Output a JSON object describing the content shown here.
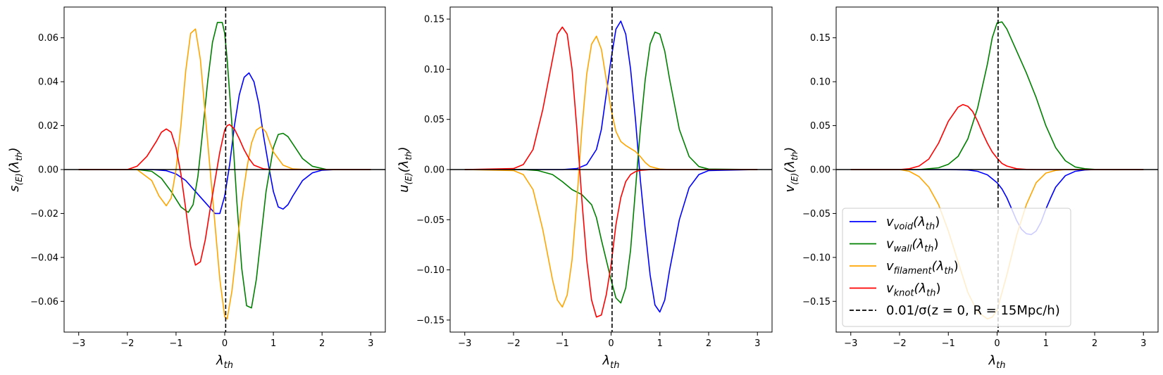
{
  "colors": {
    "void": "#0000ff",
    "wall": "#008000",
    "filament": "#ffa500",
    "knot": "#ff0000",
    "threshold": "#000000"
  },
  "chart_data": [
    {
      "type": "line",
      "xlabel": "λ_th",
      "ylabel": "s_{E}(λ_th)",
      "xlim": [
        -3.3,
        3.3
      ],
      "ylim": [
        -0.074,
        0.074
      ],
      "xticks": [
        -3,
        -2,
        -1,
        0,
        1,
        2,
        3
      ],
      "xtick_labels": [
        "−3",
        "−2",
        "−1",
        "0",
        "1",
        "2",
        "3"
      ],
      "yticks": [
        -0.06,
        -0.04,
        -0.02,
        0.0,
        0.02,
        0.04,
        0.06
      ],
      "ytick_labels": [
        "−0.06",
        "−0.04",
        "−0.02",
        "0.00",
        "0.02",
        "0.04",
        "0.06"
      ],
      "vline_x": 0.02,
      "hline_y": 0,
      "series": [
        {
          "key": "void",
          "x": [
            -3,
            -1.5,
            -1.2,
            -1,
            -0.8,
            -0.6,
            -0.4,
            -0.2,
            -0.1,
            0,
            0.1,
            0.2,
            0.3,
            0.4,
            0.5,
            0.6,
            0.7,
            0.8,
            0.9,
            1,
            1.1,
            1.2,
            1.3,
            1.4,
            1.6,
            1.8,
            2,
            2.3,
            3
          ],
          "y": [
            0,
            0,
            -0.0005,
            -0.002,
            -0.005,
            -0.01,
            -0.015,
            -0.02,
            -0.02,
            -0.012,
            0.002,
            0.02,
            0.034,
            0.042,
            0.044,
            0.04,
            0.03,
            0.015,
            0.002,
            -0.01,
            -0.017,
            -0.018,
            -0.016,
            -0.012,
            -0.005,
            -0.0015,
            -0.0003,
            0,
            0
          ]
        },
        {
          "key": "wall",
          "x": [
            -3,
            -1.8,
            -1.5,
            -1.3,
            -1.1,
            -0.9,
            -0.75,
            -0.65,
            -0.55,
            -0.45,
            -0.35,
            -0.25,
            -0.15,
            -0.05,
            0,
            0.05,
            0.15,
            0.25,
            0.35,
            0.45,
            0.55,
            0.65,
            0.75,
            0.85,
            1,
            1.1,
            1.2,
            1.3,
            1.45,
            1.6,
            1.8,
            2.1,
            3
          ],
          "y": [
            0,
            0,
            -0.0008,
            -0.004,
            -0.01,
            -0.017,
            -0.0195,
            -0.016,
            -0.003,
            0.018,
            0.04,
            0.058,
            0.067,
            0.067,
            0.062,
            0.05,
            0.02,
            -0.015,
            -0.045,
            -0.062,
            -0.063,
            -0.05,
            -0.03,
            -0.01,
            0.01,
            0.016,
            0.0165,
            0.015,
            0.01,
            0.005,
            0.0015,
            0,
            0
          ]
        },
        {
          "key": "filament",
          "x": [
            -3,
            -1.8,
            -1.5,
            -1.35,
            -1.2,
            -1.1,
            -1,
            -0.9,
            -0.8,
            -0.7,
            -0.6,
            -0.5,
            -0.4,
            -0.3,
            -0.2,
            -0.1,
            0,
            0.05,
            0.15,
            0.25,
            0.35,
            0.45,
            0.55,
            0.65,
            0.75,
            0.85,
            1,
            1.2,
            1.4,
            1.7,
            3
          ],
          "y": [
            0,
            0,
            -0.005,
            -0.012,
            -0.0165,
            -0.013,
            0.0,
            0.02,
            0.045,
            0.062,
            0.064,
            0.05,
            0.025,
            0.0,
            -0.025,
            -0.05,
            -0.067,
            -0.068,
            -0.055,
            -0.035,
            -0.015,
            0.0,
            0.012,
            0.018,
            0.0195,
            0.017,
            0.008,
            0.002,
            0.0003,
            0,
            0
          ]
        },
        {
          "key": "knot",
          "x": [
            -3,
            -2,
            -1.8,
            -1.6,
            -1.4,
            -1.3,
            -1.2,
            -1.1,
            -1,
            -0.9,
            -0.8,
            -0.7,
            -0.6,
            -0.5,
            -0.4,
            -0.3,
            -0.2,
            -0.1,
            0,
            0.05,
            0.1,
            0.2,
            0.3,
            0.4,
            0.5,
            0.6,
            0.8,
            1,
            3
          ],
          "y": [
            0,
            0,
            0.0015,
            0.006,
            0.013,
            0.017,
            0.0185,
            0.017,
            0.01,
            -0.002,
            -0.018,
            -0.035,
            -0.0435,
            -0.042,
            -0.032,
            -0.018,
            -0.005,
            0.008,
            0.018,
            0.02,
            0.0205,
            0.0185,
            0.014,
            0.009,
            0.005,
            0.002,
            0.0003,
            0,
            0
          ]
        }
      ]
    },
    {
      "type": "line",
      "xlabel": "λ_th",
      "ylabel": "u_{E}(λ_th)",
      "xlim": [
        -3.3,
        3.3
      ],
      "ylim": [
        -0.162,
        0.162
      ],
      "xticks": [
        -3,
        -2,
        -1,
        0,
        1,
        2,
        3
      ],
      "xtick_labels": [
        "−3",
        "−2",
        "−1",
        "0",
        "1",
        "2",
        "3"
      ],
      "yticks": [
        -0.15,
        -0.1,
        -0.05,
        0.0,
        0.05,
        0.1,
        0.15
      ],
      "ytick_labels": [
        "−0.15",
        "−0.10",
        "−0.05",
        "0.00",
        "0.05",
        "0.10",
        "0.15"
      ],
      "vline_x": 0.02,
      "hline_y": 0,
      "series": [
        {
          "key": "void",
          "x": [
            -3,
            -1,
            -0.7,
            -0.5,
            -0.3,
            -0.2,
            -0.1,
            0,
            0.1,
            0.2,
            0.3,
            0.4,
            0.5,
            0.55,
            0.6,
            0.7,
            0.8,
            0.9,
            1,
            1.1,
            1.2,
            1.4,
            1.6,
            1.8,
            2,
            3
          ],
          "y": [
            0,
            0,
            0.001,
            0.005,
            0.02,
            0.04,
            0.075,
            0.11,
            0.14,
            0.148,
            0.135,
            0.1,
            0.05,
            0.02,
            -0.01,
            -0.06,
            -0.105,
            -0.135,
            -0.142,
            -0.13,
            -0.1,
            -0.05,
            -0.018,
            -0.005,
            -0.001,
            0
          ]
        },
        {
          "key": "wall",
          "x": [
            -3,
            -1.8,
            -1.5,
            -1.2,
            -1,
            -0.8,
            -0.6,
            -0.4,
            -0.3,
            -0.2,
            -0.1,
            0,
            0.1,
            0.2,
            0.3,
            0.4,
            0.5,
            0.6,
            0.7,
            0.8,
            0.9,
            1,
            1.1,
            1.2,
            1.4,
            1.6,
            1.8,
            2,
            3
          ],
          "y": [
            0,
            0,
            -0.001,
            -0.005,
            -0.012,
            -0.02,
            -0.025,
            -0.035,
            -0.048,
            -0.07,
            -0.09,
            -0.11,
            -0.128,
            -0.133,
            -0.118,
            -0.08,
            -0.02,
            0.04,
            0.09,
            0.125,
            0.137,
            0.135,
            0.118,
            0.09,
            0.04,
            0.013,
            0.003,
            0.0005,
            0
          ]
        },
        {
          "key": "filament",
          "x": [
            -3,
            -2,
            -1.8,
            -1.6,
            -1.4,
            -1.2,
            -1.1,
            -1,
            -0.9,
            -0.8,
            -0.7,
            -0.6,
            -0.5,
            -0.4,
            -0.3,
            -0.2,
            -0.1,
            0,
            0.1,
            0.2,
            0.3,
            0.4,
            0.5,
            0.6,
            0.7,
            0.8,
            1,
            1.2,
            3
          ],
          "y": [
            0,
            -0.001,
            -0.005,
            -0.02,
            -0.06,
            -0.11,
            -0.13,
            -0.137,
            -0.125,
            -0.09,
            -0.03,
            0.04,
            0.095,
            0.125,
            0.133,
            0.12,
            0.09,
            0.06,
            0.038,
            0.028,
            0.024,
            0.021,
            0.018,
            0.013,
            0.007,
            0.003,
            0.0005,
            0,
            0
          ]
        },
        {
          "key": "knot",
          "x": [
            -3,
            -2,
            -1.8,
            -1.6,
            -1.4,
            -1.2,
            -1.1,
            -1,
            -0.9,
            -0.8,
            -0.7,
            -0.6,
            -0.5,
            -0.4,
            -0.3,
            -0.2,
            -0.1,
            0,
            0.1,
            0.2,
            0.3,
            0.4,
            0.5,
            0.6,
            0.8,
            1,
            3
          ],
          "y": [
            0,
            0.001,
            0.005,
            0.02,
            0.06,
            0.11,
            0.135,
            0.142,
            0.135,
            0.1,
            0.04,
            -0.03,
            -0.09,
            -0.13,
            -0.147,
            -0.145,
            -0.125,
            -0.095,
            -0.055,
            -0.028,
            -0.012,
            -0.005,
            -0.002,
            -0.0008,
            -0.0001,
            0,
            0
          ]
        }
      ]
    },
    {
      "type": "line",
      "xlabel": "λ_th",
      "ylabel": "v_{E}(λ_th)",
      "xlim": [
        -3.3,
        3.3
      ],
      "ylim": [
        -0.185,
        0.185
      ],
      "xticks": [
        -3,
        -2,
        -1,
        0,
        1,
        2,
        3
      ],
      "xtick_labels": [
        "−3",
        "−2",
        "−1",
        "0",
        "1",
        "2",
        "3"
      ],
      "yticks": [
        -0.15,
        -0.1,
        -0.05,
        0.0,
        0.05,
        0.1,
        0.15
      ],
      "ytick_labels": [
        "−0.15",
        "−0.10",
        "−0.05",
        "0.00",
        "0.05",
        "0.10",
        "0.15"
      ],
      "vline_x": 0.02,
      "hline_y": 0,
      "legend": {
        "placement": "lower-left",
        "entries": [
          {
            "key": "void",
            "label_main": "v",
            "label_sub": "void",
            "label_tail": "(λ",
            "label_sub2": "th",
            "label_end": ")"
          },
          {
            "key": "wall",
            "label_main": "v",
            "label_sub": "wall",
            "label_tail": "(λ",
            "label_sub2": "th",
            "label_end": ")"
          },
          {
            "key": "filament",
            "label_main": "v",
            "label_sub": "filament",
            "label_tail": "(λ",
            "label_sub2": "th",
            "label_end": ")"
          },
          {
            "key": "knot",
            "label_main": "v",
            "label_sub": "knot",
            "label_tail": "(λ",
            "label_sub2": "th",
            "label_end": ")"
          },
          {
            "key": "threshold",
            "label_main": "0.01/σ(z = 0, R = 15Mpc/h)",
            "label_sub": "",
            "label_tail": "",
            "label_sub2": "",
            "label_end": "",
            "dashed": true
          }
        ]
      },
      "series": [
        {
          "key": "void",
          "x": [
            -3,
            -1,
            -0.6,
            -0.4,
            -0.2,
            0,
            0.1,
            0.2,
            0.3,
            0.4,
            0.5,
            0.6,
            0.7,
            0.8,
            0.9,
            1,
            1.1,
            1.2,
            1.4,
            1.6,
            1.8,
            2,
            3
          ],
          "y": [
            0,
            0,
            -0.0005,
            -0.002,
            -0.006,
            -0.015,
            -0.022,
            -0.032,
            -0.045,
            -0.058,
            -0.068,
            -0.073,
            -0.074,
            -0.07,
            -0.06,
            -0.045,
            -0.032,
            -0.02,
            -0.007,
            -0.002,
            -0.0005,
            0,
            0
          ]
        },
        {
          "key": "wall",
          "x": [
            -3,
            -1.6,
            -1.2,
            -1,
            -0.8,
            -0.6,
            -0.4,
            -0.2,
            -0.1,
            0,
            0.1,
            0.2,
            0.4,
            0.6,
            0.8,
            1,
            1.2,
            1.4,
            1.6,
            1.8,
            2,
            3
          ],
          "y": [
            0,
            0,
            0.002,
            0.006,
            0.015,
            0.035,
            0.07,
            0.12,
            0.15,
            0.167,
            0.168,
            0.16,
            0.135,
            0.11,
            0.082,
            0.05,
            0.025,
            0.01,
            0.003,
            0.001,
            0.0002,
            0
          ]
        },
        {
          "key": "filament",
          "x": [
            -3,
            -2,
            -1.8,
            -1.6,
            -1.4,
            -1.2,
            -1,
            -0.8,
            -0.6,
            -0.4,
            -0.2,
            -0.1,
            0,
            0.1,
            0.2,
            0.4,
            0.6,
            0.8,
            1,
            1.2,
            1.4,
            3
          ],
          "y": [
            0,
            0,
            -0.002,
            -0.008,
            -0.02,
            -0.04,
            -0.07,
            -0.105,
            -0.14,
            -0.162,
            -0.17,
            -0.168,
            -0.16,
            -0.14,
            -0.12,
            -0.075,
            -0.04,
            -0.015,
            -0.004,
            -0.001,
            0,
            0
          ]
        },
        {
          "key": "knot",
          "x": [
            -3,
            -2,
            -1.8,
            -1.6,
            -1.4,
            -1.2,
            -1,
            -0.8,
            -0.7,
            -0.6,
            -0.5,
            -0.4,
            -0.3,
            -0.2,
            -0.1,
            0,
            0.1,
            0.2,
            0.4,
            0.6,
            0.8,
            3
          ],
          "y": [
            0,
            0,
            0.001,
            0.004,
            0.012,
            0.03,
            0.055,
            0.071,
            0.074,
            0.072,
            0.066,
            0.055,
            0.042,
            0.03,
            0.02,
            0.013,
            0.007,
            0.004,
            0.001,
            0.0002,
            0,
            0
          ]
        }
      ]
    }
  ]
}
